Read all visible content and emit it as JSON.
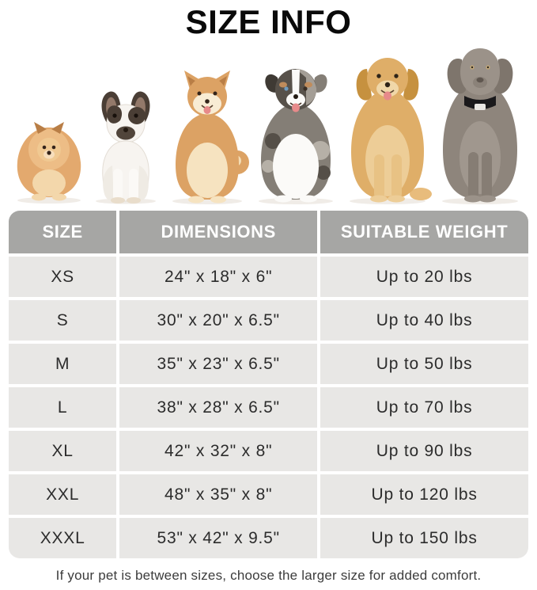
{
  "title": "SIZE INFO",
  "dogs": [
    {
      "name": "pomeranian"
    },
    {
      "name": "french-bulldog"
    },
    {
      "name": "shiba-inu"
    },
    {
      "name": "australian-shepherd"
    },
    {
      "name": "golden-retriever"
    },
    {
      "name": "weimaraner"
    }
  ],
  "table": {
    "columns": [
      "SIZE",
      "DIMENSIONS",
      "SUITABLE WEIGHT"
    ],
    "rows": [
      {
        "size": "XS",
        "dimensions": "24\" x 18\" x 6\"",
        "weight": "Up to 20 lbs"
      },
      {
        "size": "S",
        "dimensions": "30\" x 20\" x 6.5\"",
        "weight": "Up to 40 lbs"
      },
      {
        "size": "M",
        "dimensions": "35\" x 23\" x 6.5\"",
        "weight": "Up to 50 lbs"
      },
      {
        "size": "L",
        "dimensions": "38\" x 28\" x 6.5\"",
        "weight": "Up to 70 lbs"
      },
      {
        "size": "XL",
        "dimensions": "42\" x 32\" x 8\"",
        "weight": "Up to 90 lbs"
      },
      {
        "size": "XXL",
        "dimensions": "48\" x 35\" x 8\"",
        "weight": "Up to 120 lbs"
      },
      {
        "size": "XXXL",
        "dimensions": "53\" x 42\" x 9.5\"",
        "weight": "Up to 150 lbs"
      }
    ]
  },
  "footer_note": "If your pet is between sizes, choose the larger size for added comfort.",
  "colors": {
    "header_bg": "#a6a6a4",
    "row_bg": "#e8e7e5",
    "header_text": "#ffffff",
    "row_text": "#2c2c2c",
    "title_text": "#0a0a0a",
    "footer_text": "#3c3c3c",
    "page_bg": "#ffffff"
  }
}
